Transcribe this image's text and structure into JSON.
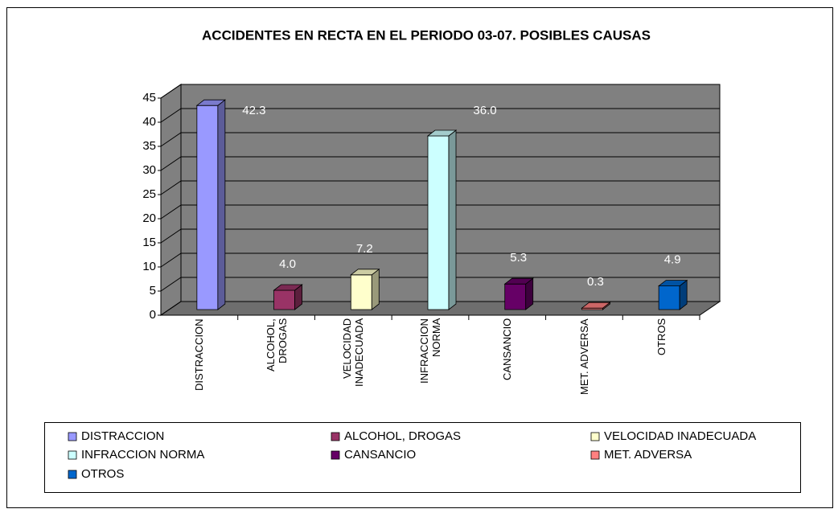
{
  "chart_data": {
    "type": "bar3d",
    "title": "ACCIDENTES EN RECTA EN EL PERIODO 03-07. POSIBLES CAUSAS",
    "categories": [
      "DISTRACCION",
      "ALCOHOL, DROGAS",
      "VELOCIDAD INADECUADA",
      "INFRACCION NORMA",
      "CANSANCIO",
      "MET. ADVERSA",
      "OTROS"
    ],
    "values": [
      42.3,
      4.0,
      7.2,
      36.0,
      5.3,
      0.3,
      4.9
    ],
    "value_labels": [
      "42.3",
      "4.0",
      "7.2",
      "36.0",
      "5.3",
      "0.3",
      "4.9"
    ],
    "colors": [
      "#9999ff",
      "#993366",
      "#ffffcc",
      "#ccffff",
      "#660066",
      "#ff8080",
      "#0066cc"
    ],
    "ylim": [
      0,
      45
    ],
    "yticks": [
      0,
      5,
      10,
      15,
      20,
      25,
      30,
      35,
      40,
      45
    ],
    "grid": true,
    "legend": "bottom"
  }
}
